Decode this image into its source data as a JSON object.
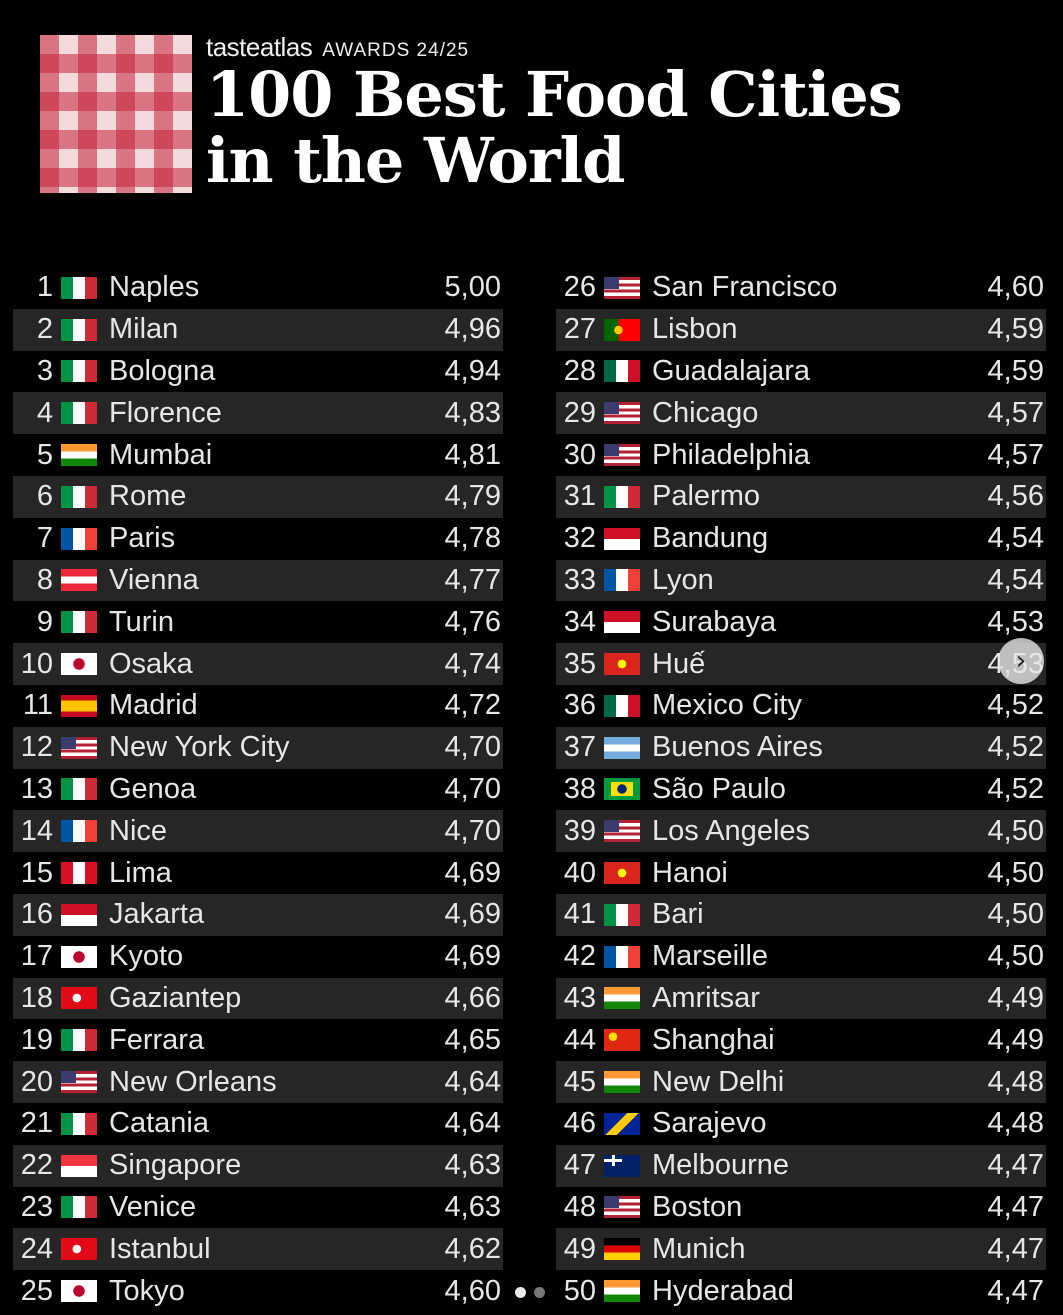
{
  "brand": {
    "name": "tasteatlas",
    "awards": "AWARDS 24/25"
  },
  "title": {
    "line1": "100 Best Food Cities",
    "line2": "in the World"
  },
  "flag_colors": {
    "it": [
      "#009246",
      "#ffffff",
      "#ce2b37"
    ],
    "in": [
      "#ff9933",
      "#ffffff",
      "#138808"
    ],
    "fr": [
      "#0055a4",
      "#ffffff",
      "#ef4135"
    ],
    "at": [
      "#ed2939",
      "#ffffff",
      "#ed2939"
    ],
    "jp": [
      "#ffffff",
      "#bc002d"
    ],
    "es": [
      "#c60b1e",
      "#ffc400",
      "#c60b1e"
    ],
    "us": [
      "#b22234",
      "#ffffff",
      "#3c3b6e"
    ],
    "pe": [
      "#d91023",
      "#ffffff",
      "#d91023"
    ],
    "id": [
      "#ce1126",
      "#ffffff"
    ],
    "tr": [
      "#e30a17",
      "#ffffff"
    ],
    "sg": [
      "#ef3340",
      "#ffffff"
    ],
    "pt": [
      "#006600",
      "#ff0000"
    ],
    "mx": [
      "#006847",
      "#ffffff",
      "#ce1126"
    ],
    "vn": [
      "#da251d",
      "#ffff00"
    ],
    "ar": [
      "#74acdf",
      "#ffffff",
      "#74acdf"
    ],
    "br": [
      "#009c3b",
      "#ffdf00",
      "#002776"
    ],
    "cn": [
      "#de2910",
      "#ffde00"
    ],
    "ba": [
      "#002395",
      "#fecb00"
    ],
    "au": [
      "#012169",
      "#ffffff"
    ],
    "de": [
      "#000000",
      "#dd0000",
      "#ffce00"
    ]
  },
  "rankings_left": [
    {
      "rank": "1",
      "flag": "it",
      "city": "Naples",
      "score": "5,00"
    },
    {
      "rank": "2",
      "flag": "it",
      "city": "Milan",
      "score": "4,96"
    },
    {
      "rank": "3",
      "flag": "it",
      "city": "Bologna",
      "score": "4,94"
    },
    {
      "rank": "4",
      "flag": "it",
      "city": "Florence",
      "score": "4,83"
    },
    {
      "rank": "5",
      "flag": "in",
      "city": "Mumbai",
      "score": "4,81"
    },
    {
      "rank": "6",
      "flag": "it",
      "city": "Rome",
      "score": "4,79"
    },
    {
      "rank": "7",
      "flag": "fr",
      "city": "Paris",
      "score": "4,78"
    },
    {
      "rank": "8",
      "flag": "at",
      "city": "Vienna",
      "score": "4,77"
    },
    {
      "rank": "9",
      "flag": "it",
      "city": "Turin",
      "score": "4,76"
    },
    {
      "rank": "10",
      "flag": "jp",
      "city": "Osaka",
      "score": "4,74"
    },
    {
      "rank": "11",
      "flag": "es",
      "city": "Madrid",
      "score": "4,72"
    },
    {
      "rank": "12",
      "flag": "us",
      "city": "New York City",
      "score": "4,70"
    },
    {
      "rank": "13",
      "flag": "it",
      "city": "Genoa",
      "score": "4,70"
    },
    {
      "rank": "14",
      "flag": "fr",
      "city": "Nice",
      "score": "4,70"
    },
    {
      "rank": "15",
      "flag": "pe",
      "city": "Lima",
      "score": "4,69"
    },
    {
      "rank": "16",
      "flag": "id",
      "city": "Jakarta",
      "score": "4,69"
    },
    {
      "rank": "17",
      "flag": "jp",
      "city": "Kyoto",
      "score": "4,69"
    },
    {
      "rank": "18",
      "flag": "tr",
      "city": "Gaziantep",
      "score": "4,66"
    },
    {
      "rank": "19",
      "flag": "it",
      "city": "Ferrara",
      "score": "4,65"
    },
    {
      "rank": "20",
      "flag": "us",
      "city": "New Orleans",
      "score": "4,64"
    },
    {
      "rank": "21",
      "flag": "it",
      "city": "Catania",
      "score": "4,64"
    },
    {
      "rank": "22",
      "flag": "sg",
      "city": "Singapore",
      "score": "4,63"
    },
    {
      "rank": "23",
      "flag": "it",
      "city": "Venice",
      "score": "4,63"
    },
    {
      "rank": "24",
      "flag": "tr",
      "city": "Istanbul",
      "score": "4,62"
    },
    {
      "rank": "25",
      "flag": "jp",
      "city": "Tokyo",
      "score": "4,60"
    }
  ],
  "rankings_right": [
    {
      "rank": "26",
      "flag": "us",
      "city": "San Francisco",
      "score": "4,60"
    },
    {
      "rank": "27",
      "flag": "pt",
      "city": "Lisbon",
      "score": "4,59"
    },
    {
      "rank": "28",
      "flag": "mx",
      "city": "Guadalajara",
      "score": "4,59"
    },
    {
      "rank": "29",
      "flag": "us",
      "city": "Chicago",
      "score": "4,57"
    },
    {
      "rank": "30",
      "flag": "us",
      "city": "Philadelphia",
      "score": "4,57"
    },
    {
      "rank": "31",
      "flag": "it",
      "city": "Palermo",
      "score": "4,56"
    },
    {
      "rank": "32",
      "flag": "id",
      "city": "Bandung",
      "score": "4,54"
    },
    {
      "rank": "33",
      "flag": "fr",
      "city": "Lyon",
      "score": "4,54"
    },
    {
      "rank": "34",
      "flag": "id",
      "city": "Surabaya",
      "score": "4,53"
    },
    {
      "rank": "35",
      "flag": "vn",
      "city": "Huế",
      "score": "4,53"
    },
    {
      "rank": "36",
      "flag": "mx",
      "city": "Mexico City",
      "score": "4,52"
    },
    {
      "rank": "37",
      "flag": "ar",
      "city": "Buenos Aires",
      "score": "4,52"
    },
    {
      "rank": "38",
      "flag": "br",
      "city": "São Paulo",
      "score": "4,52"
    },
    {
      "rank": "39",
      "flag": "us",
      "city": "Los Angeles",
      "score": "4,50"
    },
    {
      "rank": "40",
      "flag": "vn",
      "city": "Hanoi",
      "score": "4,50"
    },
    {
      "rank": "41",
      "flag": "it",
      "city": "Bari",
      "score": "4,50"
    },
    {
      "rank": "42",
      "flag": "fr",
      "city": "Marseille",
      "score": "4,50"
    },
    {
      "rank": "43",
      "flag": "in",
      "city": "Amritsar",
      "score": "4,49"
    },
    {
      "rank": "44",
      "flag": "cn",
      "city": "Shanghai",
      "score": "4,49"
    },
    {
      "rank": "45",
      "flag": "in",
      "city": "New Delhi",
      "score": "4,48"
    },
    {
      "rank": "46",
      "flag": "ba",
      "city": "Sarajevo",
      "score": "4,48"
    },
    {
      "rank": "47",
      "flag": "au",
      "city": "Melbourne",
      "score": "4,47"
    },
    {
      "rank": "48",
      "flag": "us",
      "city": "Boston",
      "score": "4,47"
    },
    {
      "rank": "49",
      "flag": "de",
      "city": "Munich",
      "score": "4,47"
    },
    {
      "rank": "50",
      "flag": "in",
      "city": "Hyderabad",
      "score": "4,47"
    }
  ],
  "carousel": {
    "next_icon": "chevron-right-icon",
    "page_count": 2,
    "active_page": 1
  }
}
